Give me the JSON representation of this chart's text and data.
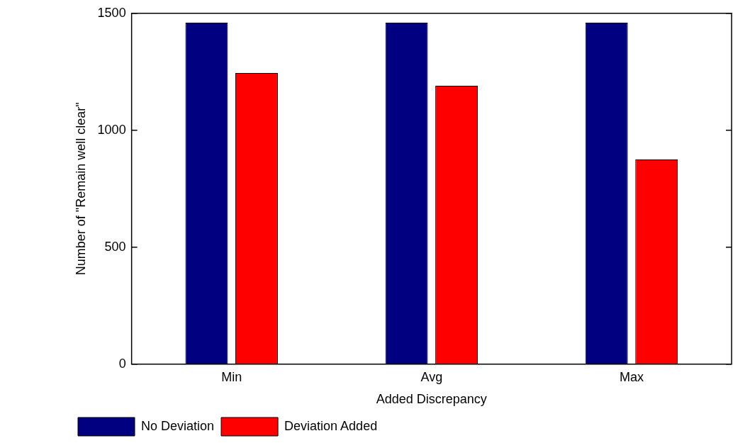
{
  "chart_data": {
    "type": "bar",
    "xlabel": "Added Discrepancy",
    "ylabel": "Number of \"Remain well clear\"",
    "categories": [
      "Min",
      "Avg",
      "Max"
    ],
    "series": [
      {
        "name": "No Deviation",
        "color": "#000080",
        "values": [
          1460,
          1460,
          1460
        ]
      },
      {
        "name": "Deviation Added",
        "color": "#ff0000",
        "values": [
          1245,
          1190,
          875
        ]
      }
    ],
    "ylim": [
      0,
      1500
    ],
    "yticks": [
      0,
      500,
      1000,
      1500
    ],
    "grid": false,
    "legend": "bottom left"
  }
}
